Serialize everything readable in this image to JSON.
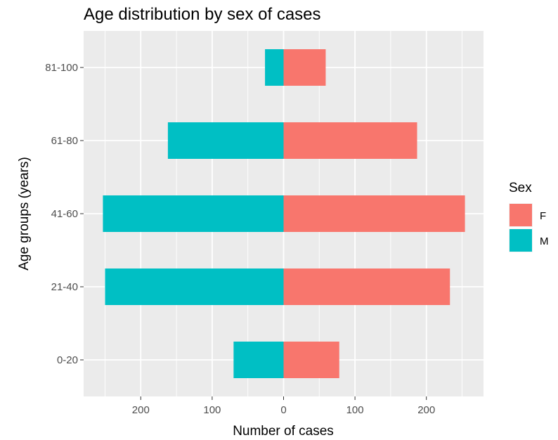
{
  "chart_data": {
    "type": "bar",
    "orientation": "horizontal",
    "layout": "population-pyramid",
    "title": "Age distribution by sex of cases",
    "xlabel": "Number of cases",
    "ylabel": "Age groups (years)",
    "categories": [
      "0-20",
      "21-40",
      "41-60",
      "61-80",
      "81-100"
    ],
    "series": [
      {
        "name": "F",
        "color": "#F8766D",
        "side": "right",
        "values": [
          78,
          233,
          254,
          187,
          59
        ]
      },
      {
        "name": "M",
        "color": "#00BFC4",
        "side": "left",
        "values": [
          70,
          250,
          253,
          162,
          26
        ]
      }
    ],
    "xlim": [
      -280,
      280
    ],
    "xticks": [
      -200,
      -100,
      0,
      100,
      200
    ],
    "xtick_labels": [
      "200",
      "100",
      "0",
      "100",
      "200"
    ],
    "grid": true,
    "panel_background": "#EBEBEB",
    "grid_color": "#FFFFFF",
    "legend": {
      "title": "Sex",
      "position": "right"
    }
  }
}
